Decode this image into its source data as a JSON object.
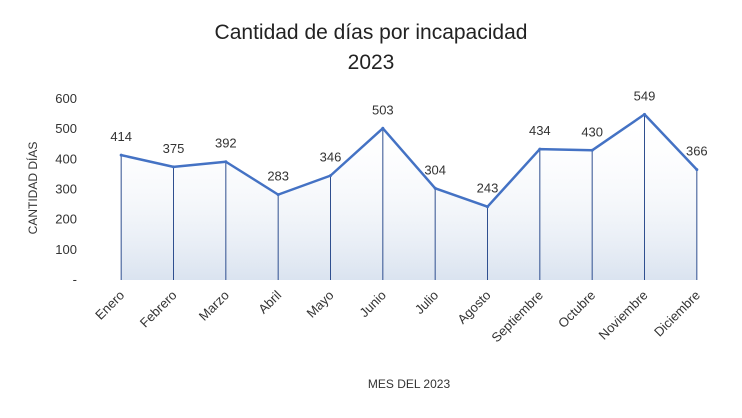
{
  "chart_data": {
    "type": "line",
    "title": "Cantidad de días por incapacidad",
    "subtitle": "2023",
    "xlabel": "MES DEL 2023",
    "ylabel": "CANTIDAD DÍAS",
    "ylim": [
      0,
      600
    ],
    "yticks": [
      {
        "value": 0,
        "label": "-"
      },
      {
        "value": 100,
        "label": "100"
      },
      {
        "value": 200,
        "label": "200"
      },
      {
        "value": 300,
        "label": "300"
      },
      {
        "value": 400,
        "label": "400"
      },
      {
        "value": 500,
        "label": "500"
      },
      {
        "value": 600,
        "label": "600"
      }
    ],
    "categories": [
      "Enero",
      "Febrero",
      "Marzo",
      "Abril",
      "Mayo",
      "Junio",
      "Julio",
      "Agosto",
      "Septiembre",
      "Octubre",
      "Noviembre",
      "Diciembre"
    ],
    "values": [
      414,
      375,
      392,
      283,
      346,
      503,
      304,
      243,
      434,
      430,
      549,
      366
    ],
    "data_labels": [
      "414",
      "375",
      "392",
      "283",
      "346",
      "503",
      "304",
      "243",
      "434",
      "430",
      "549",
      "366"
    ],
    "grid": false,
    "drop_lines": true,
    "area_gradient": true,
    "legend": "none",
    "colors": {
      "line": "#4472C4",
      "drop_line": "#2F4F8F",
      "area": "#DCE6F2"
    }
  }
}
